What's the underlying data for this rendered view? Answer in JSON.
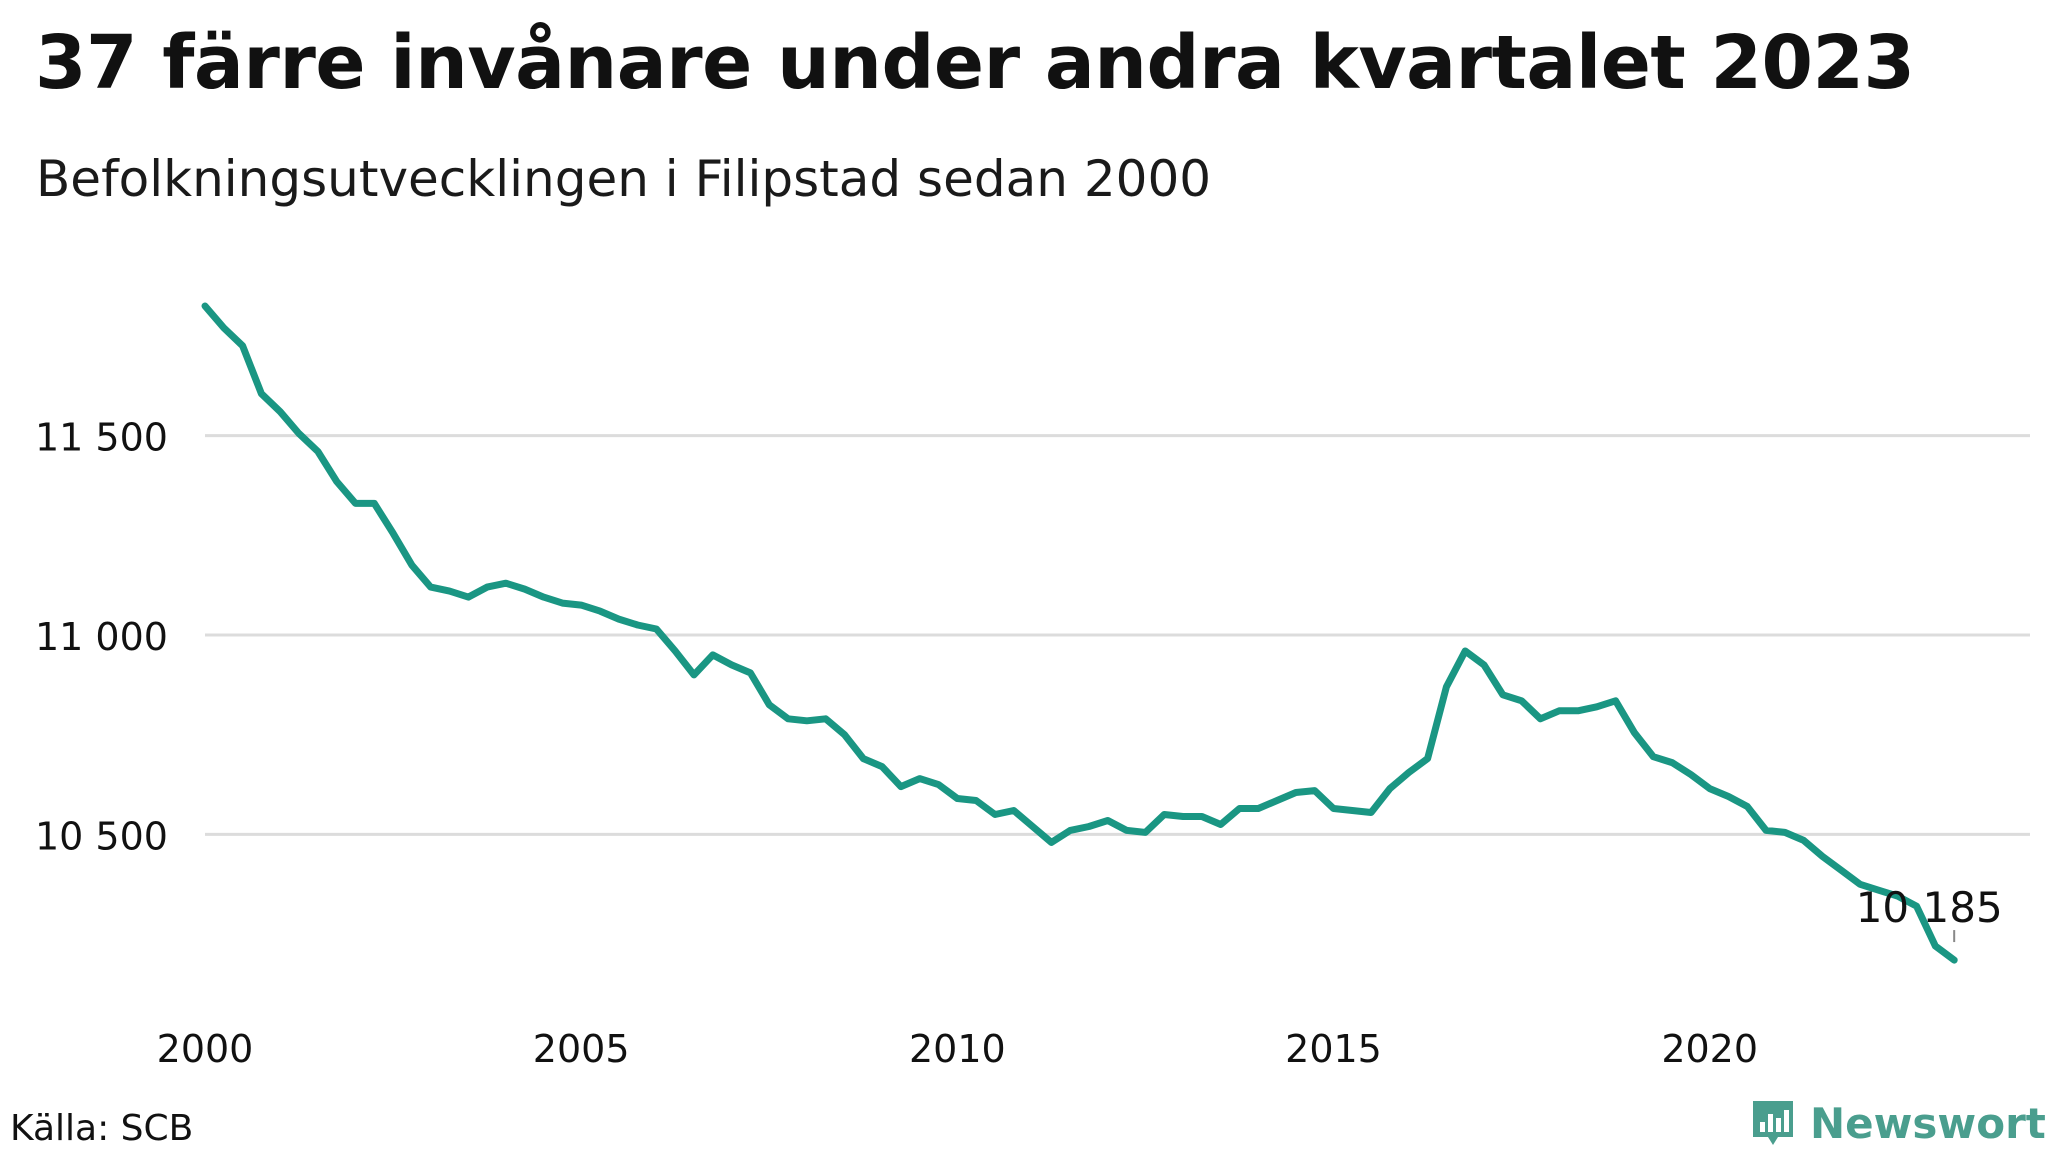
{
  "title": "37 färre invånare under andra kvartalet 2023",
  "subtitle": "Befolkningsutvecklingen i Filipstad sedan 2000",
  "source": "Källa: SCB",
  "brand": "Newsworthy",
  "colors": {
    "line": "#1a9683",
    "grid": "#dcdcdc",
    "brand": "#4a9e8e"
  },
  "chart_data": {
    "type": "line",
    "title": "37 färre invånare under andra kvartalet 2023",
    "subtitle": "Befolkningsutvecklingen i Filipstad sedan 2000",
    "xlim": [
      2000,
      2023.5
    ],
    "ylim": [
      10130,
      11860
    ],
    "x_ticks": [
      {
        "value": 2000,
        "label": "2000"
      },
      {
        "value": 2005,
        "label": "2005"
      },
      {
        "value": 2010,
        "label": "2010"
      },
      {
        "value": 2015,
        "label": "2015"
      },
      {
        "value": 2020,
        "label": "2020"
      }
    ],
    "y_ticks": [
      {
        "value": 10500,
        "label": "10 500"
      },
      {
        "value": 11000,
        "label": "11 000"
      },
      {
        "value": 11500,
        "label": "11 500"
      }
    ],
    "grid": true,
    "end_label": "10 185",
    "series": [
      {
        "x_start": 2000,
        "x_step": 0.25,
        "values": [
          11825,
          11770,
          11725,
          11605,
          11560,
          11505,
          11460,
          11385,
          11330,
          11330,
          11255,
          11175,
          11120,
          11110,
          11095,
          11120,
          11130,
          11115,
          11095,
          11080,
          11075,
          11060,
          11040,
          11025,
          11015,
          10960,
          10900,
          10950,
          10925,
          10905,
          10825,
          10790,
          10785,
          10790,
          10750,
          10690,
          10670,
          10620,
          10640,
          10625,
          10590,
          10585,
          10550,
          10560,
          10520,
          10480,
          10510,
          10520,
          10535,
          10510,
          10505,
          10550,
          10545,
          10545,
          10525,
          10565,
          10565,
          10585,
          10605,
          10610,
          10565,
          10560,
          10555,
          10615,
          10655,
          10690,
          10870,
          10960,
          10925,
          10850,
          10835,
          10790,
          10810,
          10810,
          10820,
          10835,
          10755,
          10695,
          10680,
          10650,
          10615,
          10595,
          10570,
          10510,
          10505,
          10485,
          10445,
          10410,
          10375,
          10360,
          10345,
          10320,
          10220,
          10185
        ]
      }
    ]
  }
}
